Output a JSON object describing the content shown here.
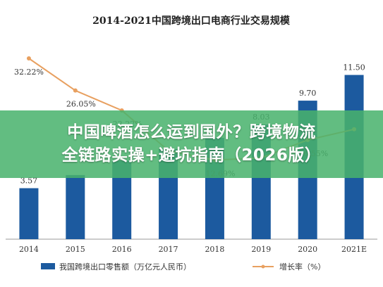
{
  "overlay": {
    "line1": "中国啤酒怎么运到国外？跨境物流",
    "line2": "全链路实操+避坑指南（2026版）"
  },
  "chart_data": {
    "type": "bar",
    "title": "2014-2021中国跨境出口电商行业交易规模",
    "categories": [
      "2014",
      "2015",
      "2016",
      "2017",
      "2018",
      "2019",
      "2020",
      "2021E"
    ],
    "series": [
      {
        "name": "我国跨境出口零售额（万亿元人民币）",
        "type": "bar",
        "values": [
          3.57,
          4.49,
          5.5,
          6.3,
          7.1,
          8.03,
          9.7,
          11.5
        ],
        "labels": [
          "3.57",
          "",
          "",
          "",
          "",
          "8.03",
          "9.70",
          "11.50"
        ],
        "color": "#1c5a9f"
      },
      {
        "name": "增长率（%）",
        "type": "line",
        "values": [
          32.22,
          26.05,
          22.22,
          14.5,
          12.69,
          13.1,
          16.55,
          18.6
        ],
        "labels": [
          "32.22%",
          "26.05%",
          "22.22%",
          "",
          "12.69%",
          "",
          "16.55%",
          ""
        ],
        "color": "#e8a060"
      }
    ],
    "ylim_bar": [
      0,
      13
    ],
    "ylim_line": [
      0,
      40
    ],
    "grid": false,
    "legend": "bottom"
  }
}
